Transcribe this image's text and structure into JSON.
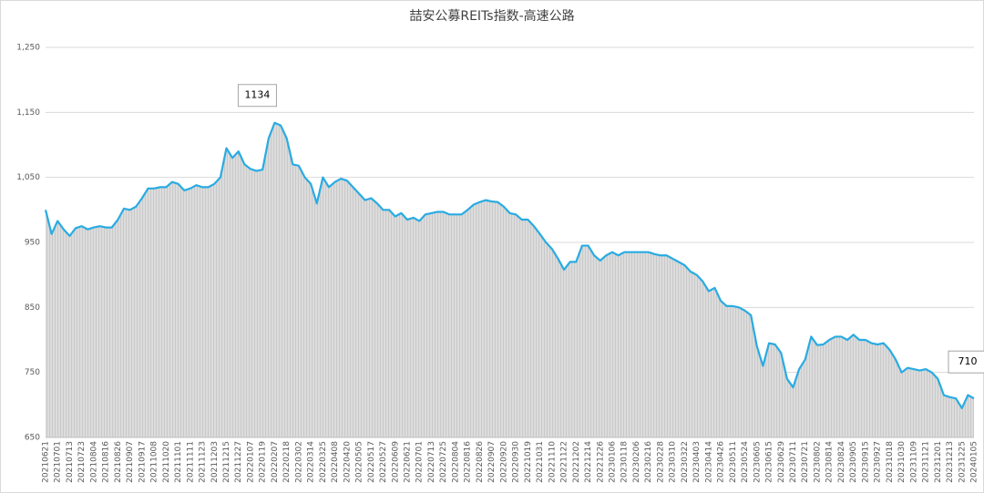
{
  "chart_data": {
    "type": "area",
    "title": "喆安公募REITs指数-高速公路",
    "categories": [
      "20210621",
      null,
      "20210701",
      null,
      "20210713",
      null,
      "20210723",
      null,
      "20210804",
      null,
      "20210816",
      null,
      "20210826",
      null,
      "20210907",
      null,
      "20210917",
      null,
      "20211008",
      null,
      "20211020",
      null,
      "20211101",
      null,
      "20211111",
      null,
      "20211123",
      null,
      "20211203",
      null,
      "20211215",
      null,
      "20211227",
      null,
      "20220107",
      null,
      "20220119",
      null,
      "20220207",
      null,
      "20220218",
      null,
      "20220302",
      null,
      "20220314",
      null,
      "20220325",
      null,
      "20220408",
      null,
      "20220420",
      null,
      "20220505",
      null,
      "20220517",
      null,
      "20220527",
      null,
      "20220609",
      null,
      "20220621",
      null,
      "20220701",
      null,
      "20220713",
      null,
      "20220725",
      null,
      "20220804",
      null,
      "20220816",
      null,
      "20220826",
      null,
      "20220907",
      null,
      "20220920",
      null,
      "20220930",
      null,
      "20221019",
      null,
      "20221031",
      null,
      "20221110",
      null,
      "20221122",
      null,
      "20221202",
      null,
      "20221214",
      null,
      "20221226",
      null,
      "20230106",
      null,
      "20230118",
      null,
      "20230206",
      null,
      "20230216",
      null,
      "20230228",
      null,
      "20230310",
      null,
      "20230322",
      null,
      "20230403",
      null,
      "20230414",
      null,
      "20230426",
      null,
      "20230511",
      null,
      "20230524",
      null,
      "20230605",
      null,
      "20230615",
      null,
      "20230629",
      null,
      "20230711",
      null,
      "20230721",
      null,
      "20230802",
      null,
      "20230814",
      null,
      "20230824",
      null,
      "20230905",
      null,
      "20230915",
      null,
      "20230927",
      null,
      "20231018",
      null,
      "20231030",
      null,
      "20231109",
      null,
      "20231121",
      null,
      "20231201",
      null,
      "20231213",
      null,
      "20231225",
      null,
      "20240105"
    ],
    "values": [
      1000,
      963,
      983,
      970,
      960,
      972,
      975,
      970,
      973,
      975,
      973,
      973,
      985,
      1002,
      1000,
      1005,
      1018,
      1033,
      1033,
      1035,
      1035,
      1043,
      1040,
      1030,
      1033,
      1038,
      1035,
      1035,
      1040,
      1050,
      1095,
      1080,
      1090,
      1070,
      1063,
      1060,
      1062,
      1110,
      1134,
      1130,
      1110,
      1070,
      1068,
      1050,
      1040,
      1010,
      1050,
      1035,
      1043,
      1048,
      1045,
      1035,
      1025,
      1015,
      1018,
      1010,
      1000,
      1000,
      990,
      995,
      985,
      988,
      983,
      993,
      995,
      997,
      997,
      993,
      993,
      993,
      1000,
      1008,
      1012,
      1015,
      1013,
      1012,
      1005,
      995,
      993,
      985,
      985,
      975,
      963,
      950,
      940,
      925,
      908,
      920,
      920,
      945,
      945,
      930,
      922,
      930,
      935,
      930,
      935,
      935,
      935,
      935,
      935,
      932,
      930,
      930,
      925,
      920,
      915,
      905,
      900,
      890,
      875,
      880,
      860,
      852,
      852,
      850,
      845,
      838,
      790,
      760,
      795,
      793,
      780,
      740,
      727,
      755,
      770,
      805,
      792,
      793,
      800,
      805,
      805,
      800,
      808,
      800,
      800,
      795,
      793,
      795,
      785,
      770,
      750,
      757,
      755,
      753,
      755,
      750,
      740,
      715,
      712,
      710,
      695,
      715,
      710
    ],
    "color": "#29abe2",
    "fill_color": "#d9d9d9",
    "ylim": [
      650,
      1250
    ],
    "yticks": [
      650,
      750,
      850,
      950,
      {
        "value": 1050,
        "label": "1,050"
      },
      {
        "value": 1150,
        "label": "1,150"
      },
      {
        "value": 1250,
        "label": "1,250"
      }
    ],
    "grid": true
  }
}
